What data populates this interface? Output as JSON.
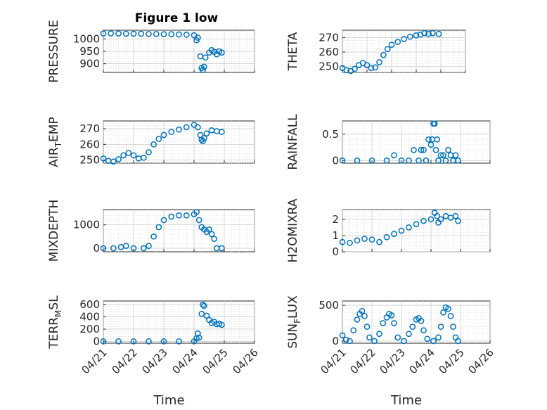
{
  "figure_title": "Figure 1 low",
  "chart_data": [
    {
      "type": "scatter",
      "ylabel": "PRESSURE",
      "xlim": [
        "04/21",
        "04/26"
      ],
      "ylim": [
        865,
        1035
      ],
      "yticks": [
        900,
        950,
        1000
      ],
      "xticklabels": [],
      "xlabel": "",
      "points": [
        [
          "04/21 00:00",
          1022
        ],
        [
          "04/21 06:00",
          1022
        ],
        [
          "04/21 12:00",
          1022
        ],
        [
          "04/21 18:00",
          1021
        ],
        [
          "04/22 00:00",
          1021
        ],
        [
          "04/22 06:00",
          1021
        ],
        [
          "04/22 12:00",
          1020
        ],
        [
          "04/22 18:00",
          1020
        ],
        [
          "04/23 00:00",
          1019
        ],
        [
          "04/23 06:00",
          1019
        ],
        [
          "04/23 12:00",
          1018
        ],
        [
          "04/23 18:00",
          1017
        ],
        [
          "04/24 00:00",
          1015
        ],
        [
          "04/24 02:00",
          995
        ],
        [
          "04/24 03:00",
          1005
        ],
        [
          "04/24 05:00",
          930
        ],
        [
          "04/24 06:00",
          883
        ],
        [
          "04/24 07:00",
          875
        ],
        [
          "04/24 08:00",
          888
        ],
        [
          "04/24 09:00",
          925
        ],
        [
          "04/24 12:00",
          945
        ],
        [
          "04/24 14:00",
          955
        ],
        [
          "04/24 16:00",
          948
        ],
        [
          "04/24 18:00",
          938
        ],
        [
          "04/24 20:00",
          950
        ],
        [
          "04/24 22:00",
          945
        ]
      ]
    },
    {
      "type": "scatter",
      "ylabel": "THETA",
      "xlim": [
        "04/21",
        "04/26"
      ],
      "ylim": [
        246,
        275
      ],
      "yticks": [
        250,
        260,
        270
      ],
      "xticklabels": [],
      "xlabel": "",
      "points": [
        [
          "04/21 00:00",
          249
        ],
        [
          "04/21 04:00",
          247.5
        ],
        [
          "04/21 08:00",
          247
        ],
        [
          "04/21 12:00",
          248.5
        ],
        [
          "04/21 16:00",
          251
        ],
        [
          "04/21 20:00",
          252.5
        ],
        [
          "04/22 00:00",
          251
        ],
        [
          "04/22 04:00",
          249
        ],
        [
          "04/22 08:00",
          249.5
        ],
        [
          "04/22 12:00",
          253
        ],
        [
          "04/22 16:00",
          258
        ],
        [
          "04/22 20:00",
          262
        ],
        [
          "04/23 00:00",
          265
        ],
        [
          "04/23 06:00",
          267
        ],
        [
          "04/23 12:00",
          269
        ],
        [
          "04/23 18:00",
          270.5
        ],
        [
          "04/24 00:00",
          271.5
        ],
        [
          "04/24 04:00",
          272
        ],
        [
          "04/24 08:00",
          273
        ],
        [
          "04/24 12:00",
          272.5
        ],
        [
          "04/24 16:00",
          273
        ],
        [
          "04/24 22:00",
          272.5
        ]
      ]
    },
    {
      "type": "scatter",
      "ylabel": "AIR_TEMP",
      "xlim": [
        "04/21",
        "04/26"
      ],
      "ylim": [
        248,
        275
      ],
      "yticks": [
        250,
        260,
        270
      ],
      "xticklabels": [],
      "xlabel": "",
      "points": [
        [
          "04/21 00:00",
          251
        ],
        [
          "04/21 04:00",
          249.5
        ],
        [
          "04/21 08:00",
          249
        ],
        [
          "04/21 12:00",
          250.5
        ],
        [
          "04/21 16:00",
          253
        ],
        [
          "04/21 20:00",
          254.5
        ],
        [
          "04/22 00:00",
          253
        ],
        [
          "04/22 04:00",
          251
        ],
        [
          "04/22 08:00",
          251.5
        ],
        [
          "04/22 12:00",
          255
        ],
        [
          "04/22 16:00",
          260
        ],
        [
          "04/22 20:00",
          263.5
        ],
        [
          "04/23 00:00",
          266
        ],
        [
          "04/23 06:00",
          268
        ],
        [
          "04/23 12:00",
          269.5
        ],
        [
          "04/23 18:00",
          271
        ],
        [
          "04/24 00:00",
          272.5
        ],
        [
          "04/24 03:00",
          271
        ],
        [
          "04/24 05:00",
          266
        ],
        [
          "04/24 06:00",
          263
        ],
        [
          "04/24 07:00",
          262
        ],
        [
          "04/24 08:00",
          264
        ],
        [
          "04/24 10:00",
          267
        ],
        [
          "04/24 14:00",
          269
        ],
        [
          "04/24 18:00",
          268.5
        ],
        [
          "04/24 22:00",
          268
        ]
      ]
    },
    {
      "type": "scatter",
      "ylabel": "RAINFALL",
      "xlim": [
        "04/21",
        "04/26"
      ],
      "ylim": [
        -0.05,
        0.75
      ],
      "yticks": [
        0,
        0.5
      ],
      "xticklabels": [],
      "xlabel": "",
      "points": [
        [
          "04/21 00:00",
          0
        ],
        [
          "04/21 12:00",
          0
        ],
        [
          "04/22 00:00",
          0
        ],
        [
          "04/22 12:00",
          0
        ],
        [
          "04/22 18:00",
          0.1
        ],
        [
          "04/23 00:00",
          0
        ],
        [
          "04/23 06:00",
          0
        ],
        [
          "04/23 10:00",
          0.2
        ],
        [
          "04/23 14:00",
          0
        ],
        [
          "04/23 16:00",
          0.2
        ],
        [
          "04/23 18:00",
          0.2
        ],
        [
          "04/23 20:00",
          0
        ],
        [
          "04/23 22:00",
          0.4
        ],
        [
          "04/24 00:00",
          0.3
        ],
        [
          "04/24 01:00",
          0.4
        ],
        [
          "04/24 02:00",
          0.7
        ],
        [
          "04/24 03:00",
          0.7
        ],
        [
          "04/24 04:00",
          0.2
        ],
        [
          "04/24 05:00",
          0.4
        ],
        [
          "04/24 06:00",
          0
        ],
        [
          "04/24 08:00",
          0.1
        ],
        [
          "04/24 10:00",
          0.1
        ],
        [
          "04/24 12:00",
          0
        ],
        [
          "04/24 14:00",
          0.2
        ],
        [
          "04/24 16:00",
          0.1
        ],
        [
          "04/24 18:00",
          0
        ],
        [
          "04/24 20:00",
          0.1
        ],
        [
          "04/24 22:00",
          0
        ]
      ]
    },
    {
      "type": "scatter",
      "ylabel": "MIXDEPTH",
      "xlim": [
        "04/21",
        "04/26"
      ],
      "ylim": [
        -150,
        1650
      ],
      "yticks": [
        0,
        1000
      ],
      "xticklabels": [],
      "xlabel": "",
      "points": [
        [
          "04/21 00:00",
          0
        ],
        [
          "04/21 08:00",
          0
        ],
        [
          "04/21 14:00",
          50
        ],
        [
          "04/21 18:00",
          100
        ],
        [
          "04/22 00:00",
          0
        ],
        [
          "04/22 08:00",
          0
        ],
        [
          "04/22 12:00",
          100
        ],
        [
          "04/22 16:00",
          500
        ],
        [
          "04/22 20:00",
          900
        ],
        [
          "04/23 00:00",
          1200
        ],
        [
          "04/23 06:00",
          1350
        ],
        [
          "04/23 12:00",
          1400
        ],
        [
          "04/23 18:00",
          1400
        ],
        [
          "04/24 00:00",
          1450
        ],
        [
          "04/24 02:00",
          1550
        ],
        [
          "04/24 04:00",
          1200
        ],
        [
          "04/24 06:00",
          900
        ],
        [
          "04/24 08:00",
          800
        ],
        [
          "04/24 10:00",
          700
        ],
        [
          "04/24 12:00",
          800
        ],
        [
          "04/24 14:00",
          600
        ],
        [
          "04/24 16:00",
          400
        ],
        [
          "04/24 18:00",
          0
        ],
        [
          "04/24 22:00",
          0
        ]
      ]
    },
    {
      "type": "scatter",
      "ylabel": "H2OMIXRA",
      "xlim": [
        "04/21",
        "04/26"
      ],
      "ylim": [
        0,
        2.6
      ],
      "yticks": [
        0,
        1,
        2
      ],
      "xticklabels": [],
      "xlabel": "",
      "points": [
        [
          "04/21 00:00",
          0.6
        ],
        [
          "04/21 06:00",
          0.55
        ],
        [
          "04/21 12:00",
          0.7
        ],
        [
          "04/21 18:00",
          0.8
        ],
        [
          "04/22 00:00",
          0.75
        ],
        [
          "04/22 06:00",
          0.6
        ],
        [
          "04/22 12:00",
          0.9
        ],
        [
          "04/22 18:00",
          1.1
        ],
        [
          "04/23 00:00",
          1.3
        ],
        [
          "04/23 06:00",
          1.5
        ],
        [
          "04/23 12:00",
          1.7
        ],
        [
          "04/23 18:00",
          1.9
        ],
        [
          "04/24 00:00",
          2.0
        ],
        [
          "04/24 03:00",
          2.4
        ],
        [
          "04/24 05:00",
          2.2
        ],
        [
          "04/24 06:00",
          1.8
        ],
        [
          "04/24 08:00",
          2.0
        ],
        [
          "04/24 12:00",
          2.2
        ],
        [
          "04/24 16:00",
          2.1
        ],
        [
          "04/24 20:00",
          2.2
        ],
        [
          "04/24 22:00",
          1.9
        ]
      ]
    },
    {
      "type": "scatter",
      "ylabel": "TERR_MSL",
      "xlim": [
        "04/21",
        "04/26"
      ],
      "ylim": [
        -30,
        660
      ],
      "yticks": [
        0,
        200,
        400,
        600
      ],
      "xticklabels": [
        "04/21",
        "04/22",
        "04/23",
        "04/24",
        "04/25",
        "04/26"
      ],
      "xlabel": "Time",
      "points": [
        [
          "04/21 00:00",
          0
        ],
        [
          "04/21 12:00",
          0
        ],
        [
          "04/22 00:00",
          0
        ],
        [
          "04/22 12:00",
          0
        ],
        [
          "04/23 00:00",
          0
        ],
        [
          "04/23 12:00",
          0
        ],
        [
          "04/24 00:00",
          0
        ],
        [
          "04/24 02:00",
          50
        ],
        [
          "04/24 03:00",
          130
        ],
        [
          "04/24 04:00",
          60
        ],
        [
          "04/24 06:00",
          450
        ],
        [
          "04/24 07:00",
          600
        ],
        [
          "04/24 08:00",
          580
        ],
        [
          "04/24 10:00",
          420
        ],
        [
          "04/24 12:00",
          350
        ],
        [
          "04/24 14:00",
          300
        ],
        [
          "04/24 16:00",
          320
        ],
        [
          "04/24 18:00",
          280
        ],
        [
          "04/24 20:00",
          290
        ],
        [
          "04/24 22:00",
          270
        ]
      ]
    },
    {
      "type": "scatter",
      "ylabel": "SUN_FLUX",
      "xlim": [
        "04/21",
        "04/26"
      ],
      "ylim": [
        -30,
        560
      ],
      "yticks": [
        0,
        500
      ],
      "xticklabels": [
        "04/21",
        "04/22",
        "04/23",
        "04/24",
        "04/25",
        "04/26"
      ],
      "xlabel": "Time",
      "points": [
        [
          "04/21 00:00",
          80
        ],
        [
          "04/21 03:00",
          20
        ],
        [
          "04/21 06:00",
          0
        ],
        [
          "04/21 09:00",
          150
        ],
        [
          "04/21 12:00",
          300
        ],
        [
          "04/21 14:00",
          380
        ],
        [
          "04/21 16:00",
          420
        ],
        [
          "04/21 18:00",
          350
        ],
        [
          "04/21 20:00",
          200
        ],
        [
          "04/21 22:00",
          50
        ],
        [
          "04/22 02:00",
          0
        ],
        [
          "04/22 06:00",
          100
        ],
        [
          "04/22 09:00",
          250
        ],
        [
          "04/22 12:00",
          330
        ],
        [
          "04/22 14:00",
          380
        ],
        [
          "04/22 16:00",
          360
        ],
        [
          "04/22 18:00",
          250
        ],
        [
          "04/22 21:00",
          50
        ],
        [
          "04/23 02:00",
          0
        ],
        [
          "04/23 06:00",
          100
        ],
        [
          "04/23 09:00",
          200
        ],
        [
          "04/23 12:00",
          300
        ],
        [
          "04/23 14:00",
          320
        ],
        [
          "04/23 16:00",
          280
        ],
        [
          "04/23 18:00",
          150
        ],
        [
          "04/23 21:00",
          30
        ],
        [
          "04/24 02:00",
          0
        ],
        [
          "04/24 06:00",
          50
        ],
        [
          "04/24 08:00",
          200
        ],
        [
          "04/24 10:00",
          400
        ],
        [
          "04/24 12:00",
          470
        ],
        [
          "04/24 14:00",
          450
        ],
        [
          "04/24 16:00",
          350
        ],
        [
          "04/24 18:00",
          200
        ],
        [
          "04/24 20:00",
          50
        ],
        [
          "04/24 22:00",
          0
        ]
      ]
    }
  ]
}
